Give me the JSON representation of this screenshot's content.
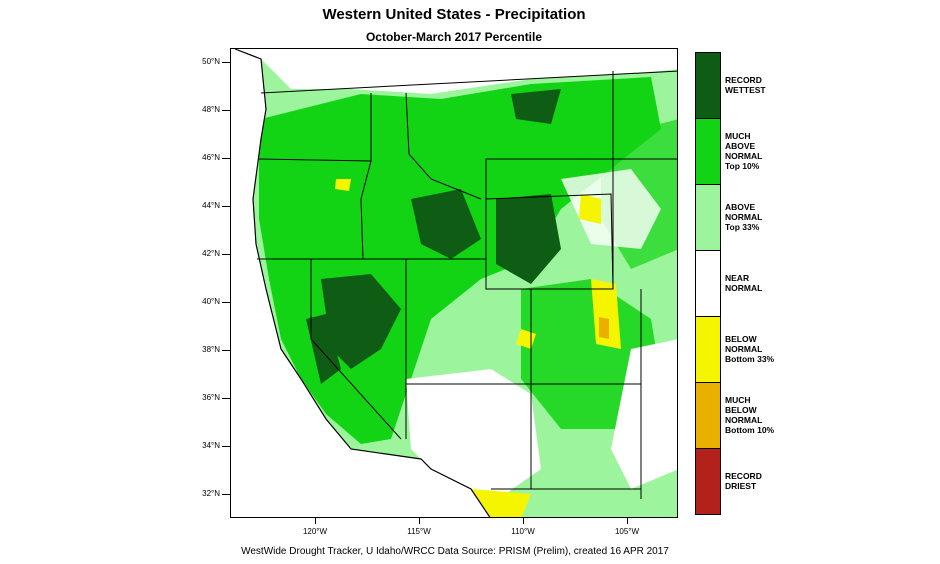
{
  "title": "Western United States - Precipitation",
  "subtitle": "October-March 2017 Percentile",
  "lat_labels": [
    "50°N",
    "48°N",
    "46°N",
    "44°N",
    "42°N",
    "40°N",
    "38°N",
    "36°N",
    "34°N",
    "32°N"
  ],
  "lon_labels": [
    "120°W",
    "115°W",
    "110°W",
    "105°W"
  ],
  "legend": [
    {
      "lines": [
        "RECORD",
        "WETTEST"
      ],
      "color": "#0f5c14"
    },
    {
      "lines": [
        "MUCH",
        "ABOVE",
        "NORMAL",
        "Top 10%"
      ],
      "color": "#12d414"
    },
    {
      "lines": [
        "ABOVE",
        "NORMAL",
        "Top 33%"
      ],
      "color": "#9cf59c"
    },
    {
      "lines": [
        "NEAR",
        "NORMAL"
      ],
      "color": "#ffffff"
    },
    {
      "lines": [
        "BELOW",
        "NORMAL",
        "Bottom 33%"
      ],
      "color": "#f5f500"
    },
    {
      "lines": [
        "MUCH",
        "BELOW",
        "NORMAL",
        "Bottom 10%"
      ],
      "color": "#eab000"
    },
    {
      "lines": [
        "RECORD",
        "DRIEST"
      ],
      "color": "#b3221a"
    }
  ],
  "footer": "WestWide Drought Tracker, U Idaho/WRCC Data Source: PRISM (Prelim), created 16 APR 2017"
}
